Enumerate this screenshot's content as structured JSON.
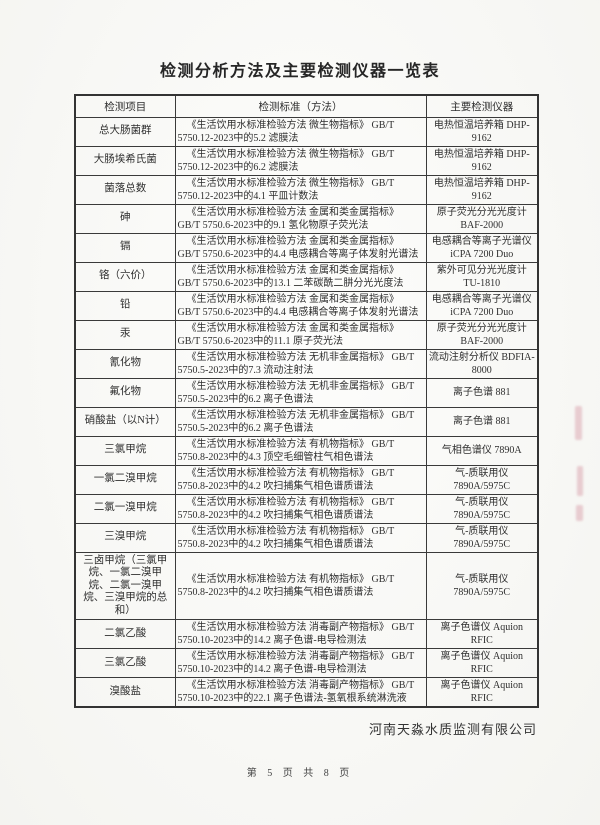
{
  "page": {
    "title": "检测分析方法及主要检测仪器一览表",
    "company": "河南天淼水质监测有限公司",
    "page_footer": "第 5 页  共 8 页"
  },
  "table": {
    "headers": [
      "检测项目",
      "检测标准（方法）",
      "主要检测仪器"
    ],
    "rows": [
      {
        "item": "总大肠菌群",
        "method": "《生活饮用水标准检验方法 微生物指标》 GB/T 5750.12-2023中的5.2 滤膜法",
        "instrument": "电热恒温培养箱 DHP-9162"
      },
      {
        "item": "大肠埃希氏菌",
        "method": "《生活饮用水标准检验方法 微生物指标》 GB/T 5750.12-2023中的6.2 滤膜法",
        "instrument": "电热恒温培养箱 DHP-9162"
      },
      {
        "item": "菌落总数",
        "method": "《生活饮用水标准检验方法 微生物指标》 GB/T 5750.12-2023中的4.1 平皿计数法",
        "instrument": "电热恒温培养箱 DHP-9162"
      },
      {
        "item": "砷",
        "method": "《生活饮用水标准检验方法 金属和类金属指标》 GB/T 5750.6-2023中的9.1 氢化物原子荧光法",
        "instrument": "原子荧光分光光度计 BAF-2000"
      },
      {
        "item": "镉",
        "method": "《生活饮用水标准检验方法 金属和类金属指标》 GB/T 5750.6-2023中的4.4 电感耦合等离子体发射光谱法",
        "instrument": "电感耦合等离子光谱仪 iCPA 7200 Duo"
      },
      {
        "item": "铬（六价）",
        "method": "《生活饮用水标准检验方法 金属和类金属指标》 GB/T 5750.6-2023中的13.1 二苯碳酰二肼分光光度法",
        "instrument": "紫外可见分光光度计 TU-1810"
      },
      {
        "item": "铅",
        "method": "《生活饮用水标准检验方法 金属和类金属指标》 GB/T 5750.6-2023中的4.4 电感耦合等离子体发射光谱法",
        "instrument": "电感耦合等离子光谱仪 iCPA 7200 Duo"
      },
      {
        "item": "汞",
        "method": "《生活饮用水标准检验方法 金属和类金属指标》 GB/T 5750.6-2023中的11.1 原子荧光法",
        "instrument": "原子荧光分光光度计 BAF-2000"
      },
      {
        "item": "氰化物",
        "method": "《生活饮用水标准检验方法 无机非金属指标》 GB/T 5750.5-2023中的7.3 流动注射法",
        "instrument": "流动注射分析仪 BDFIA-8000"
      },
      {
        "item": "氟化物",
        "method": "《生活饮用水标准检验方法 无机非金属指标》 GB/T 5750.5-2023中的6.2 离子色谱法",
        "instrument": "离子色谱 881"
      },
      {
        "item": "硝酸盐（以N计）",
        "method": "《生活饮用水标准检验方法 无机非金属指标》 GB/T 5750.5-2023中的6.2 离子色谱法",
        "instrument": "离子色谱 881"
      },
      {
        "item": "三氯甲烷",
        "method": "《生活饮用水标准检验方法 有机物指标》 GB/T 5750.8-2023中的4.3 顶空毛细管柱气相色谱法",
        "instrument": "气相色谱仪 7890A"
      },
      {
        "item": "一氯二溴甲烷",
        "method": "《生活饮用水标准检验方法 有机物指标》 GB/T 5750.8-2023中的4.2 吹扫捕集气相色谱质谱法",
        "instrument": "气-质联用仪 7890A/5975C"
      },
      {
        "item": "二氯一溴甲烷",
        "method": "《生活饮用水标准检验方法 有机物指标》 GB/T 5750.8-2023中的4.2 吹扫捕集气相色谱质谱法",
        "instrument": "气-质联用仪 7890A/5975C"
      },
      {
        "item": "三溴甲烷",
        "method": "《生活饮用水标准检验方法 有机物指标》 GB/T 5750.8-2023中的4.2 吹扫捕集气相色谱质谱法",
        "instrument": "气-质联用仪 7890A/5975C"
      },
      {
        "item": "三卤甲烷（三氯甲烷、一氯二溴甲烷、二氯一溴甲烷、三溴甲烷的总和）",
        "method": "《生活饮用水标准检验方法 有机物指标》 GB/T 5750.8-2023中的4.2 吹扫捕集气相色谱质谱法",
        "instrument": "气-质联用仪 7890A/5975C"
      },
      {
        "item": "二氯乙酸",
        "method": "《生活饮用水标准检验方法 消毒副产物指标》 GB/T 5750.10-2023中的14.2 离子色谱-电导检测法",
        "instrument": "离子色谱仪 Aquion RFIC"
      },
      {
        "item": "三氯乙酸",
        "method": "《生活饮用水标准检验方法 消毒副产物指标》 GB/T 5750.10-2023中的14.2 离子色谱-电导检测法",
        "instrument": "离子色谱仪 Aquion RFIC"
      },
      {
        "item": "溴酸盐",
        "method": "《生活饮用水标准检验方法 消毒副产物指标》 GB/T 5750.10-2023中的22.1 离子色谱法-氢氧根系统淋洗液",
        "instrument": "离子色谱仪 Aquion RFIC"
      }
    ]
  }
}
